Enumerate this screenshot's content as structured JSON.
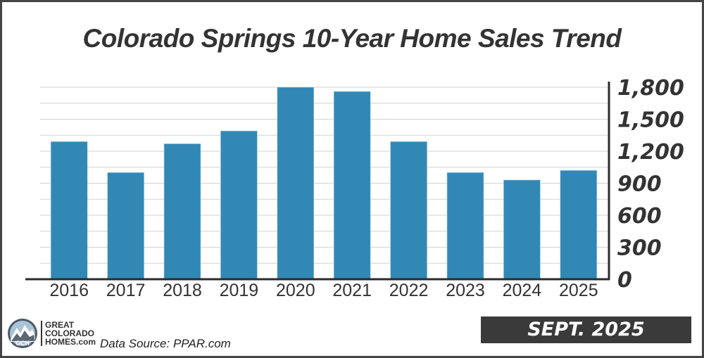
{
  "chart_data": {
    "type": "bar",
    "title": "Colorado Springs 10-Year Home Sales Trend",
    "categories": [
      "2016",
      "2017",
      "2018",
      "2019",
      "2020",
      "2021",
      "2022",
      "2023",
      "2024",
      "2025"
    ],
    "values": [
      1290,
      1000,
      1270,
      1390,
      1800,
      1760,
      1290,
      1000,
      930,
      1020
    ],
    "xlabel": "",
    "ylabel": "",
    "ylim": [
      0,
      1800
    ],
    "yticks": [
      "0",
      "300",
      "600",
      "900",
      "1,200",
      "1,500",
      "1,800"
    ],
    "ytick_values": [
      0,
      300,
      600,
      900,
      1200,
      1500,
      1800
    ],
    "gridline_step": 150,
    "grid": true,
    "y_axis_side": "right",
    "bar_color": "#3288b5"
  },
  "footer": {
    "logo_lines": [
      "GREAT",
      "COLORADO",
      "HOMES.com"
    ],
    "logo_badge": "GCH",
    "source": "Data Source: PPAR.com",
    "date": "SEPT. 2025"
  }
}
